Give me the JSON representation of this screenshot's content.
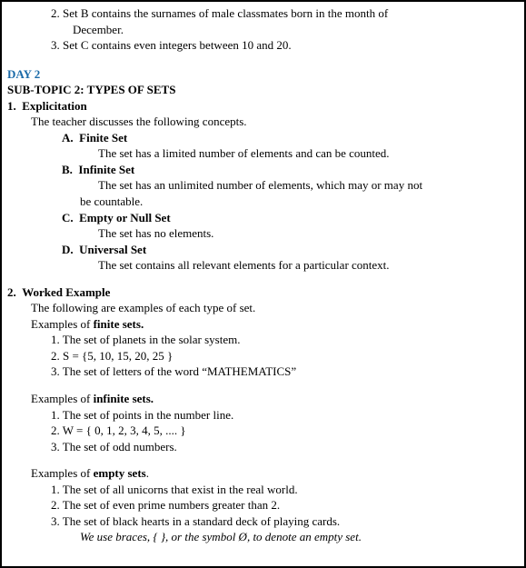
{
  "prior": {
    "item2_a": "2. Set B contains the surnames of male classmates born in the month of",
    "item2_b": "December.",
    "item3": "3. Set C contains even integers between 10 and 20."
  },
  "day2": {
    "label": "DAY 2",
    "subtopic": "SUB-TOPIC 2: TYPES OF SETS",
    "sec1": {
      "heading": "1.  Explicitation",
      "intro": "The teacher discusses the following concepts.",
      "a_head": "A.  Finite Set",
      "a_text": "The set has a limited number of elements and can be counted.",
      "b_head": "B.  Infinite Set",
      "b_text1": "The set has an unlimited number of elements, which may or may not",
      "b_text2": "be countable.",
      "c_head": "C.  Empty or Null Set",
      "c_text": "The set has no elements.",
      "d_head": "D.  Universal Set",
      "d_text": "The set contains all relevant elements for a particular context."
    },
    "sec2": {
      "heading": "2.  Worked Example",
      "intro": "The following are examples of each type of set.",
      "fin_pre": "Examples of ",
      "fin_b": "finite sets.",
      "fin1": "1. The set of planets in the solar system.",
      "fin2": "2. S = {5, 10, 15, 20, 25 }",
      "fin3": "3. The set of letters of the word “MATHEMATICS”",
      "inf_pre": "Examples of ",
      "inf_b": "infinite sets.",
      "inf1": "1. The set of points in the number line.",
      "inf2": "2. W = { 0, 1, 2, 3, 4, 5, .... }",
      "inf3": "3. The set of odd numbers.",
      "emp_pre": "Examples of ",
      "emp_b": "empty sets",
      "emp_post": ".",
      "emp1": "1. The set of all unicorns that exist in the real world.",
      "emp2": "2. The set of even prime numbers greater than 2.",
      "emp3": "3. The set of black hearts in a standard deck of playing cards.",
      "note": "We use braces, { }, or the symbol Ø, to denote an empty set."
    }
  }
}
